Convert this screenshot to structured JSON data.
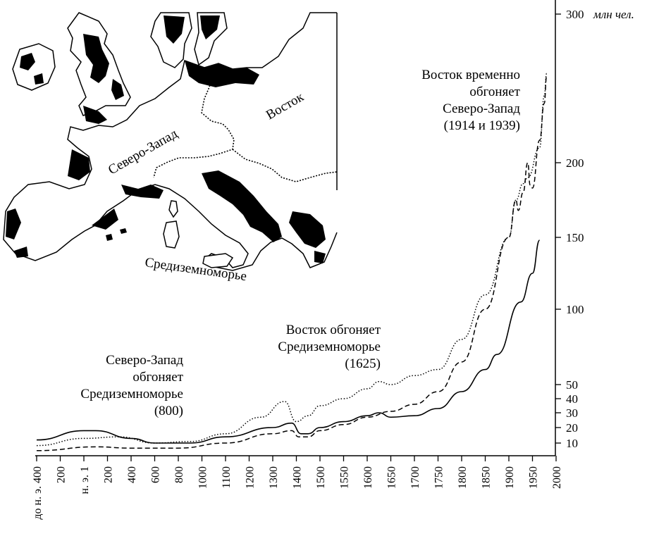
{
  "map": {
    "labels": {
      "northwest": "Северо-Запад",
      "east": "Восток",
      "mediterranean": "Средиземноморье"
    }
  },
  "annotations": [
    {
      "id": "a800",
      "lines": [
        "Северо-Запад",
        "обгоняет",
        "Средиземноморье",
        "(800)"
      ]
    },
    {
      "id": "a1625",
      "lines": [
        "Восток обгоняет",
        "Средиземноморье",
        "(1625)"
      ]
    },
    {
      "id": "a1914",
      "lines": [
        "Восток временно",
        "обгоняет",
        "Северо-Запад",
        "(1914 и 1939)"
      ]
    }
  ],
  "chart_data": {
    "type": "line",
    "title": "",
    "xlabel": "",
    "ylabel": "",
    "y_unit_label": "млн чел.",
    "x_categories": [
      "до н. э. 400",
      "200",
      "н. э. 1",
      "200",
      "400",
      "600",
      "800",
      "1000",
      "1100",
      "1200",
      "1300",
      "1400",
      "1500",
      "1550",
      "1600",
      "1650",
      "1700",
      "1750",
      "1800",
      "1850",
      "1900",
      "1950",
      "2000"
    ],
    "y_ticks": [
      10,
      20,
      30,
      40,
      50,
      100,
      150,
      200,
      300
    ],
    "y_scale": "nonlinear (compressed top: 200→300 spans less than 150→200)",
    "ylim": [
      0,
      310
    ],
    "grid": false,
    "series": [
      {
        "style": "solid",
        "points": [
          [
            0,
            12
          ],
          [
            2.0,
            18
          ],
          [
            2.5,
            18
          ],
          [
            4.0,
            13
          ],
          [
            5.0,
            10
          ],
          [
            6.5,
            10
          ],
          [
            8.0,
            14
          ],
          [
            10.0,
            20
          ],
          [
            10.8,
            23
          ],
          [
            11.2,
            16
          ],
          [
            11.5,
            16
          ],
          [
            12.0,
            20
          ],
          [
            13.0,
            24
          ],
          [
            14.0,
            28
          ],
          [
            14.5,
            30
          ],
          [
            15.0,
            27
          ],
          [
            16.0,
            28
          ],
          [
            17.0,
            33
          ],
          [
            18.0,
            45
          ],
          [
            19.0,
            60
          ],
          [
            19.5,
            70
          ],
          [
            20.5,
            105
          ],
          [
            21.0,
            125
          ],
          [
            21.3,
            148
          ]
        ]
      },
      {
        "style": "dotted",
        "points": [
          [
            0,
            8
          ],
          [
            2.0,
            13
          ],
          [
            3.5,
            14
          ],
          [
            5.0,
            10
          ],
          [
            6.5,
            11
          ],
          [
            8.0,
            16
          ],
          [
            9.5,
            27
          ],
          [
            10.5,
            38
          ],
          [
            11.0,
            24
          ],
          [
            11.5,
            28
          ],
          [
            12.0,
            35
          ],
          [
            13.0,
            40
          ],
          [
            14.0,
            47
          ],
          [
            14.5,
            52
          ],
          [
            15.0,
            50
          ],
          [
            16.0,
            56
          ],
          [
            17.0,
            60
          ],
          [
            18.0,
            80
          ],
          [
            19.0,
            110
          ],
          [
            20.0,
            150
          ],
          [
            20.3,
            175
          ],
          [
            20.6,
            186
          ],
          [
            20.8,
            190
          ],
          [
            21.3,
            210
          ],
          [
            21.5,
            245
          ],
          [
            21.6,
            260
          ]
        ]
      },
      {
        "style": "dashed",
        "points": [
          [
            0,
            4
          ],
          [
            2.5,
            7
          ],
          [
            4.0,
            6
          ],
          [
            6.0,
            6
          ],
          [
            8.0,
            10
          ],
          [
            10.0,
            16
          ],
          [
            10.8,
            18
          ],
          [
            11.1,
            14
          ],
          [
            11.5,
            14
          ],
          [
            12.0,
            18
          ],
          [
            13.0,
            22
          ],
          [
            14.0,
            27
          ],
          [
            15.0,
            31
          ],
          [
            16.0,
            36
          ],
          [
            17.0,
            45
          ],
          [
            18.0,
            65
          ],
          [
            19.0,
            100
          ],
          [
            20.0,
            150
          ],
          [
            20.3,
            175
          ],
          [
            20.4,
            168
          ],
          [
            20.6,
            180
          ],
          [
            20.8,
            200
          ],
          [
            20.9,
            185
          ],
          [
            21.0,
            183
          ],
          [
            21.3,
            215
          ],
          [
            21.5,
            240
          ],
          [
            21.6,
            258
          ]
        ]
      }
    ]
  }
}
